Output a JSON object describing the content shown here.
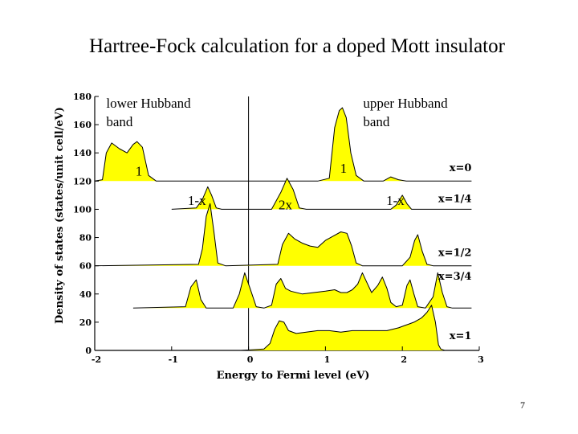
{
  "slide": {
    "title": "Hartree-Fock calculation for a doped Mott insulator",
    "page_number": "7"
  },
  "colors": {
    "fill": "#ffff00",
    "line": "#000000"
  },
  "chart_data": {
    "type": "area",
    "title": "Hartree-Fock calculation for a doped Mott insulator",
    "xlabel": "Energy to Fermi level (eV)",
    "ylabel": "Density of states (states/unit cell/eV)",
    "xlim": [
      -2,
      3
    ],
    "ylim": [
      0,
      180
    ],
    "x_ticks": [
      -2,
      -1,
      0,
      1,
      2,
      3
    ],
    "y_ticks": [
      0,
      20,
      40,
      60,
      80,
      100,
      120,
      140,
      160,
      180
    ],
    "fermi_level_line": 0,
    "series": [
      {
        "name": "x=0",
        "baseline": 120,
        "label_at": [
          2.9,
          127
        ],
        "points": [
          [
            -2.0,
            120
          ],
          [
            -1.9,
            121
          ],
          [
            -1.85,
            140
          ],
          [
            -1.78,
            147
          ],
          [
            -1.68,
            143
          ],
          [
            -1.58,
            140
          ],
          [
            -1.5,
            146
          ],
          [
            -1.45,
            148
          ],
          [
            -1.38,
            144
          ],
          [
            -1.3,
            124
          ],
          [
            -1.2,
            120
          ],
          [
            0.9,
            120
          ],
          [
            1.05,
            122
          ],
          [
            1.12,
            158
          ],
          [
            1.18,
            170
          ],
          [
            1.22,
            172
          ],
          [
            1.27,
            165
          ],
          [
            1.33,
            140
          ],
          [
            1.4,
            124
          ],
          [
            1.5,
            120
          ],
          [
            1.75,
            120
          ],
          [
            1.85,
            123
          ],
          [
            1.95,
            121
          ],
          [
            2.05,
            120
          ],
          [
            2.9,
            120
          ]
        ]
      },
      {
        "name": "x=1/4",
        "baseline": 100,
        "label_at": [
          2.9,
          105
        ],
        "points": [
          [
            -1.0,
            100
          ],
          [
            -0.68,
            101
          ],
          [
            -0.6,
            107
          ],
          [
            -0.53,
            116
          ],
          [
            -0.48,
            110
          ],
          [
            -0.42,
            101
          ],
          [
            -0.35,
            100
          ],
          [
            0.3,
            100
          ],
          [
            0.42,
            112
          ],
          [
            0.5,
            122
          ],
          [
            0.58,
            114
          ],
          [
            0.66,
            101
          ],
          [
            0.75,
            100
          ],
          [
            1.85,
            100
          ],
          [
            1.92,
            103
          ],
          [
            2.0,
            110
          ],
          [
            2.06,
            104
          ],
          [
            2.12,
            100
          ],
          [
            2.9,
            100
          ]
        ]
      },
      {
        "name": "x=1/2",
        "baseline": 60,
        "label_at": [
          2.9,
          67
        ],
        "points": [
          [
            -2.0,
            60
          ],
          [
            -0.65,
            61
          ],
          [
            -0.6,
            72
          ],
          [
            -0.55,
            95
          ],
          [
            -0.5,
            104
          ],
          [
            -0.45,
            84
          ],
          [
            -0.4,
            62
          ],
          [
            -0.3,
            60
          ],
          [
            0.38,
            61
          ],
          [
            0.44,
            75
          ],
          [
            0.52,
            83
          ],
          [
            0.6,
            79
          ],
          [
            0.7,
            76
          ],
          [
            0.8,
            74
          ],
          [
            0.9,
            73
          ],
          [
            1.0,
            78
          ],
          [
            1.1,
            81
          ],
          [
            1.2,
            84
          ],
          [
            1.28,
            83
          ],
          [
            1.34,
            74
          ],
          [
            1.4,
            62
          ],
          [
            1.48,
            60
          ],
          [
            2.0,
            60
          ],
          [
            2.1,
            66
          ],
          [
            2.16,
            78
          ],
          [
            2.2,
            82
          ],
          [
            2.26,
            70
          ],
          [
            2.32,
            61
          ],
          [
            2.4,
            60
          ],
          [
            2.9,
            60
          ]
        ]
      },
      {
        "name": "x=3/4",
        "baseline": 30,
        "label_at": [
          2.9,
          50
        ],
        "points": [
          [
            -1.5,
            30
          ],
          [
            -0.82,
            31
          ],
          [
            -0.75,
            45
          ],
          [
            -0.68,
            50
          ],
          [
            -0.62,
            36
          ],
          [
            -0.55,
            30
          ],
          [
            -0.2,
            30
          ],
          [
            -0.12,
            40
          ],
          [
            -0.05,
            55
          ],
          [
            0.02,
            44
          ],
          [
            0.1,
            31
          ],
          [
            0.2,
            30
          ],
          [
            0.3,
            32
          ],
          [
            0.36,
            47
          ],
          [
            0.42,
            51
          ],
          [
            0.48,
            44
          ],
          [
            0.55,
            42
          ],
          [
            0.7,
            40
          ],
          [
            0.85,
            41
          ],
          [
            1.0,
            42
          ],
          [
            1.12,
            43
          ],
          [
            1.2,
            41
          ],
          [
            1.28,
            41
          ],
          [
            1.35,
            43
          ],
          [
            1.42,
            47
          ],
          [
            1.48,
            55
          ],
          [
            1.54,
            48
          ],
          [
            1.6,
            41
          ],
          [
            1.68,
            46
          ],
          [
            1.74,
            52
          ],
          [
            1.8,
            44
          ],
          [
            1.85,
            34
          ],
          [
            1.92,
            31
          ],
          [
            2.0,
            32
          ],
          [
            2.06,
            46
          ],
          [
            2.1,
            50
          ],
          [
            2.15,
            40
          ],
          [
            2.2,
            31
          ],
          [
            2.3,
            30
          ],
          [
            2.4,
            38
          ],
          [
            2.46,
            55
          ],
          [
            2.52,
            41
          ],
          [
            2.58,
            31
          ],
          [
            2.65,
            30
          ],
          [
            2.9,
            30
          ]
        ]
      },
      {
        "name": "x=1",
        "baseline": 0,
        "label_at": [
          2.9,
          8
        ],
        "points": [
          [
            -0.1,
            0
          ],
          [
            0.2,
            1
          ],
          [
            0.28,
            5
          ],
          [
            0.34,
            15
          ],
          [
            0.4,
            21
          ],
          [
            0.46,
            20
          ],
          [
            0.52,
            14
          ],
          [
            0.62,
            12
          ],
          [
            0.75,
            13
          ],
          [
            0.9,
            14
          ],
          [
            1.05,
            14
          ],
          [
            1.2,
            13
          ],
          [
            1.35,
            14
          ],
          [
            1.5,
            14
          ],
          [
            1.65,
            14
          ],
          [
            1.8,
            14
          ],
          [
            1.95,
            16
          ],
          [
            2.05,
            18
          ],
          [
            2.15,
            20
          ],
          [
            2.25,
            23
          ],
          [
            2.32,
            27
          ],
          [
            2.38,
            32
          ],
          [
            2.43,
            20
          ],
          [
            2.47,
            4
          ],
          [
            2.5,
            1
          ],
          [
            2.55,
            0
          ],
          [
            2.9,
            0
          ]
        ]
      }
    ],
    "annotations": [
      {
        "text": "lower Hubband",
        "x": -1.85,
        "y": 172
      },
      {
        "text": "band",
        "x": -1.85,
        "y": 159
      },
      {
        "text": "upper Hubband",
        "x": 1.49,
        "y": 172
      },
      {
        "text": "band",
        "x": 1.49,
        "y": 159
      },
      {
        "text": "1",
        "x": -1.47,
        "y": 124
      },
      {
        "text": "1",
        "x": 1.19,
        "y": 126
      },
      {
        "text": "1-x",
        "x": -0.79,
        "y": 103
      },
      {
        "text": "2x",
        "x": 0.39,
        "y": 100
      },
      {
        "text": "1-x",
        "x": 1.79,
        "y": 103
      }
    ]
  }
}
